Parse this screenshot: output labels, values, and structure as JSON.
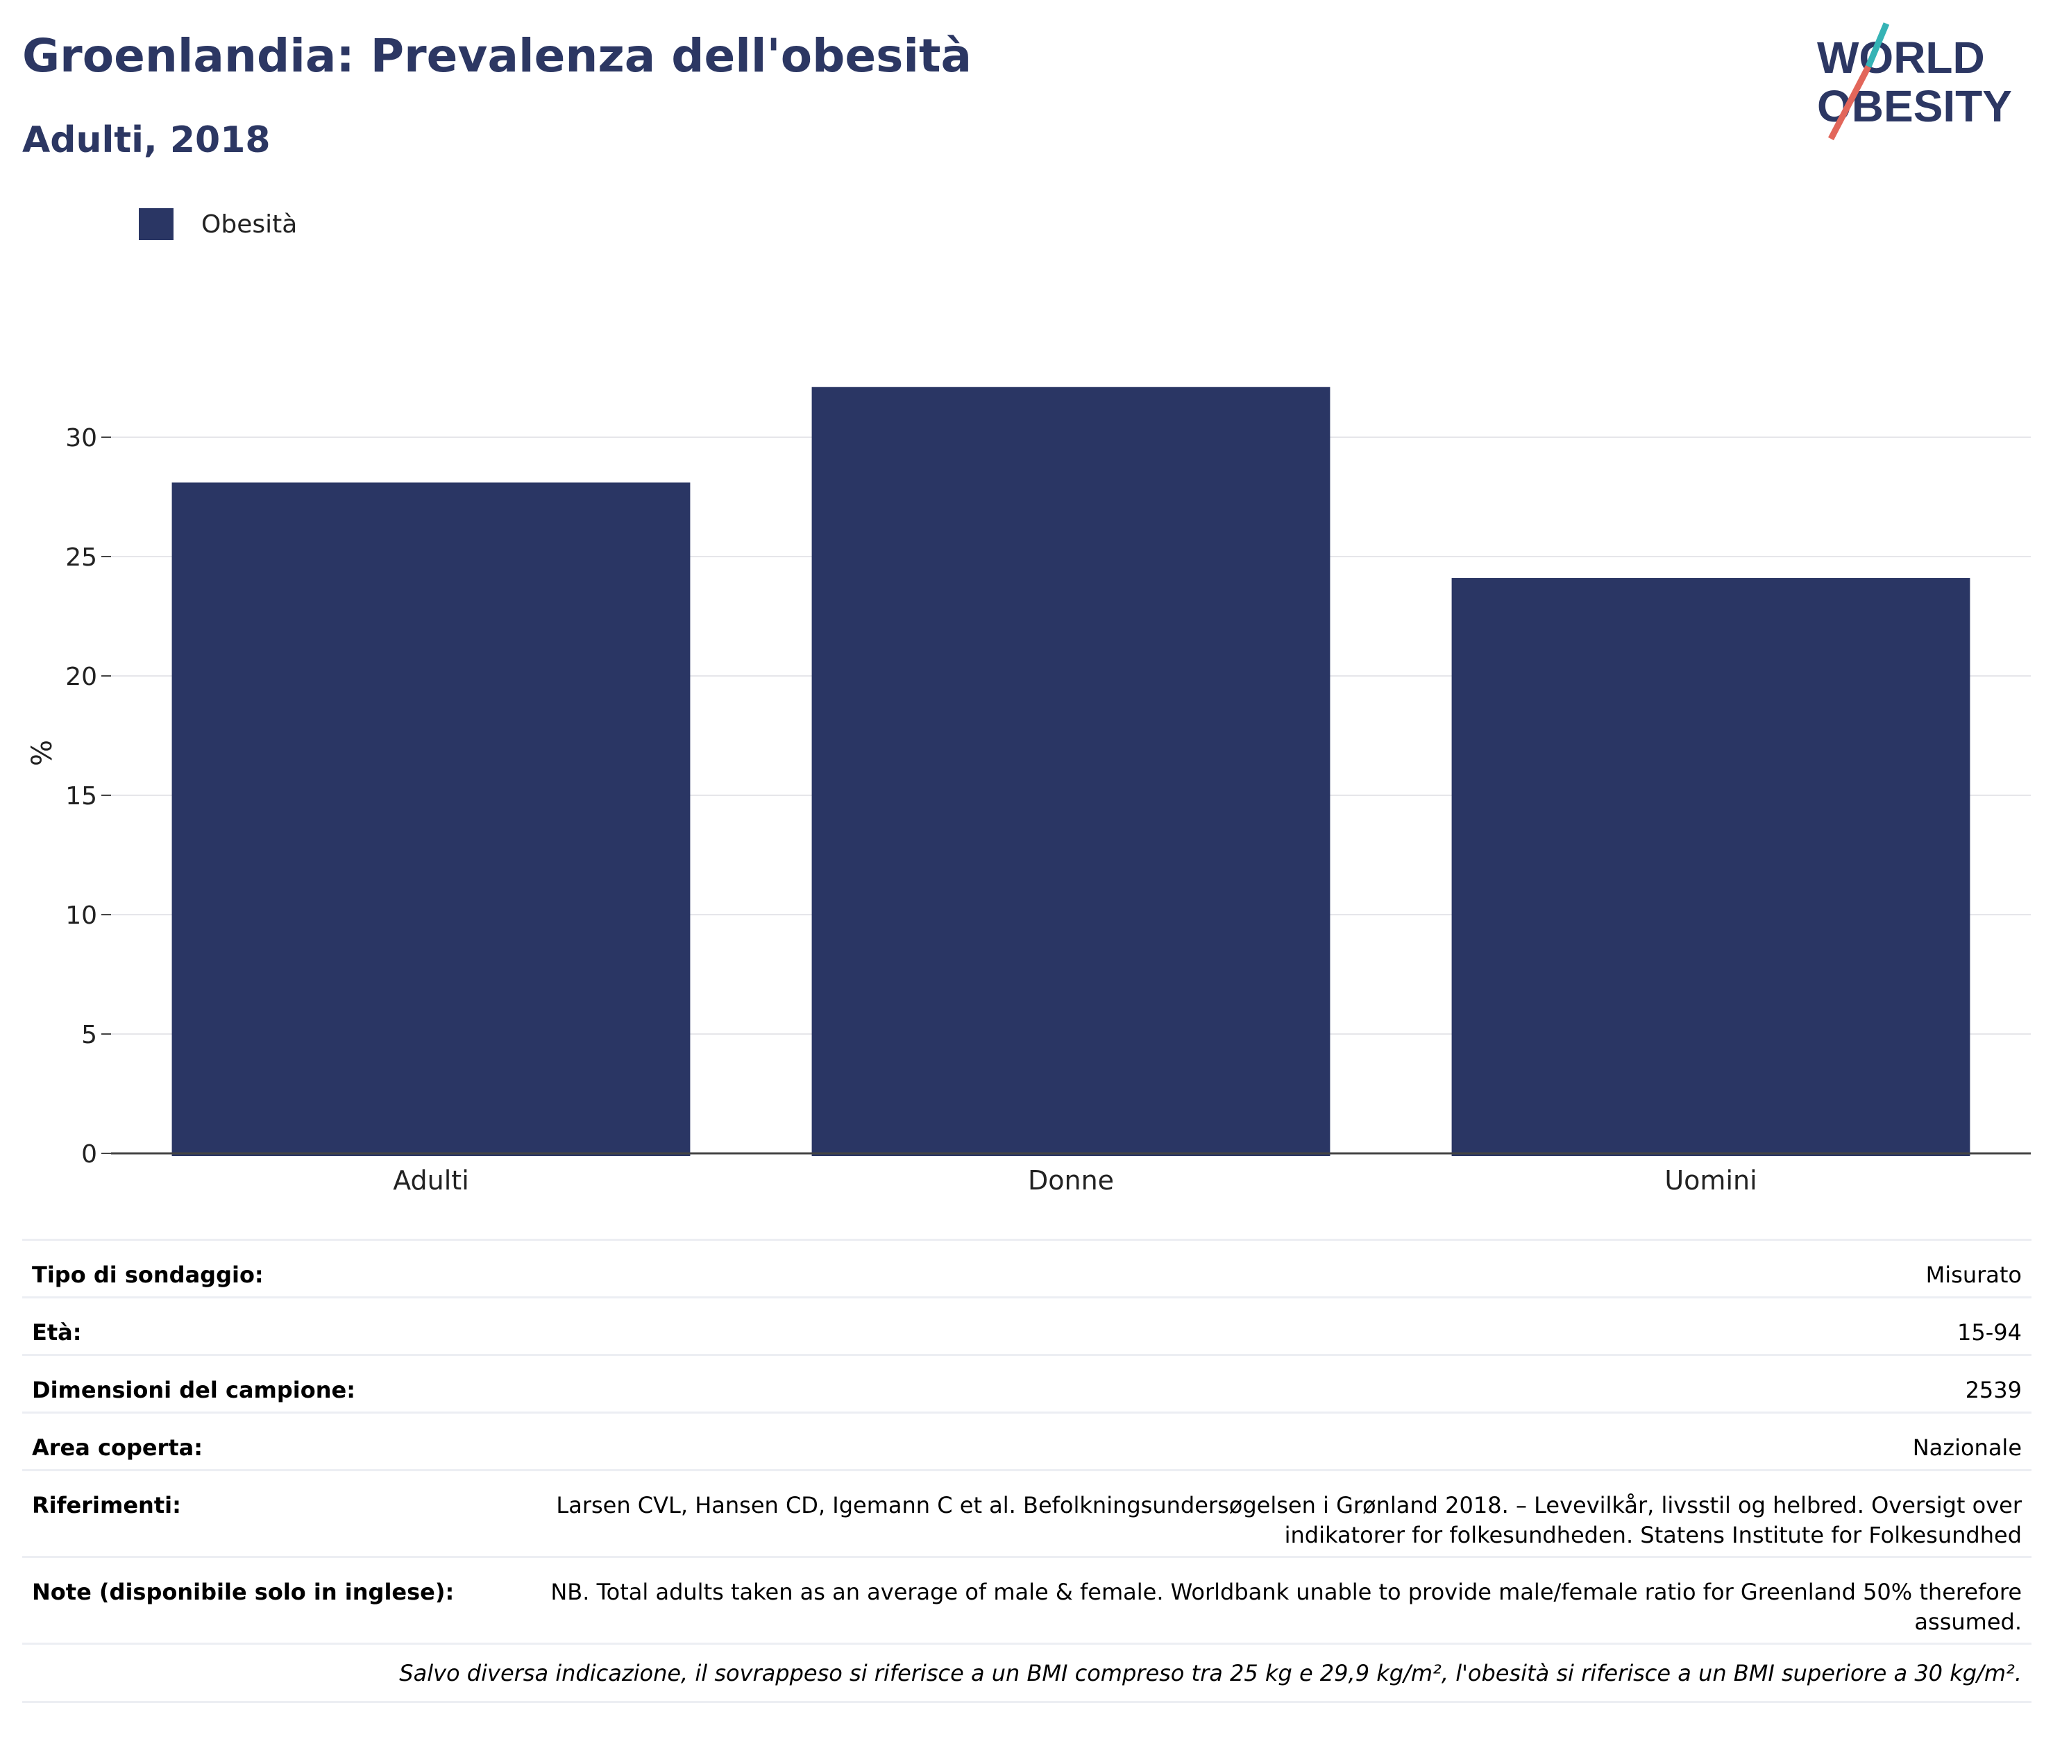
{
  "header": {
    "title": "Groenlandia: Prevalenza dell'obesità",
    "subtitle": "Adulti, 2018"
  },
  "logo": {
    "line1": "WORLD",
    "line2": "OBESITY"
  },
  "colors": {
    "bar": "#2a3664",
    "title": "#2c3763",
    "grid": "#e6e6ea",
    "logo_teal": "#35b3b5",
    "logo_coral": "#e2665a"
  },
  "chart_data": {
    "type": "bar",
    "categories": [
      "Adulti",
      "Donne",
      "Uomini"
    ],
    "series": [
      {
        "name": "Obesità",
        "values": [
          28.1,
          32.1,
          24.1
        ]
      }
    ],
    "ylabel": "%",
    "ylim": [
      0,
      33
    ],
    "yticks": [
      0,
      5,
      10,
      15,
      20,
      25,
      30
    ],
    "grid": true,
    "legend": "top-left"
  },
  "info": [
    {
      "key": "Tipo di sondaggio:",
      "value": "Misurato"
    },
    {
      "key": "Età:",
      "value": "15-94"
    },
    {
      "key": "Dimensioni del campione:",
      "value": "2539"
    },
    {
      "key": "Area coperta:",
      "value": "Nazionale"
    },
    {
      "key": "Riferimenti:",
      "value": "Larsen CVL, Hansen CD, Igemann C et al. Befolkningsundersøgelsen i Grønland 2018. – Levevilkår, livsstil og helbred. Oversigt over indikatorer for folkesundheden. Statens Institute for Folkesundhed"
    },
    {
      "key": "Note (disponibile solo in inglese):",
      "value": "NB. Total adults taken as an average of male & female. Worldbank unable to provide male/female ratio for Greenland 50% therefore assumed."
    }
  ],
  "footnote": "Salvo diversa indicazione, il sovrappeso si riferisce a un BMI compreso tra 25 kg e 29,9 kg/m², l'obesità si riferisce a un BMI superiore a 30 kg/m²."
}
